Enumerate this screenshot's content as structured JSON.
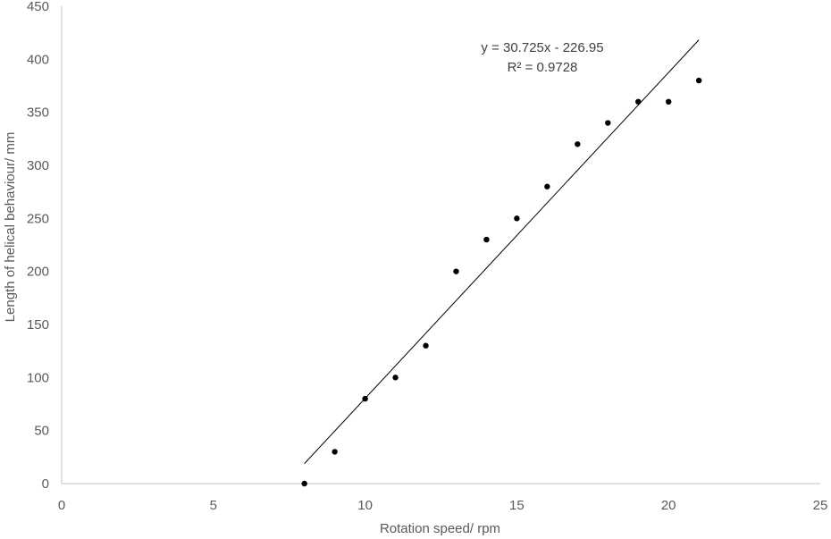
{
  "chart_data": {
    "type": "scatter",
    "title": "",
    "xlabel": "Rotation speed/ rpm",
    "ylabel": "Length of helical behaviour/ mm",
    "xlim": [
      0,
      25
    ],
    "ylim": [
      0,
      450
    ],
    "xticks": [
      0,
      5,
      10,
      15,
      20,
      25
    ],
    "yticks": [
      0,
      50,
      100,
      150,
      200,
      250,
      300,
      350,
      400,
      450
    ],
    "grid": false,
    "legend": "none",
    "marker_color": "#000000",
    "series": [
      {
        "x": [
          8,
          9,
          10,
          11,
          12,
          13,
          14,
          15,
          16,
          17,
          18,
          19,
          20,
          21
        ],
        "y": [
          0,
          30,
          80,
          100,
          130,
          200,
          230,
          250,
          280,
          320,
          340,
          360,
          360,
          380
        ]
      }
    ],
    "trendline": {
      "type": "linear",
      "slope": 30.725,
      "intercept": -226.95,
      "x_range": [
        8,
        21
      ],
      "color": "#000000",
      "equation_label": "y = 30.725x - 226.95",
      "r2_label": "R² = 0.9728"
    }
  }
}
